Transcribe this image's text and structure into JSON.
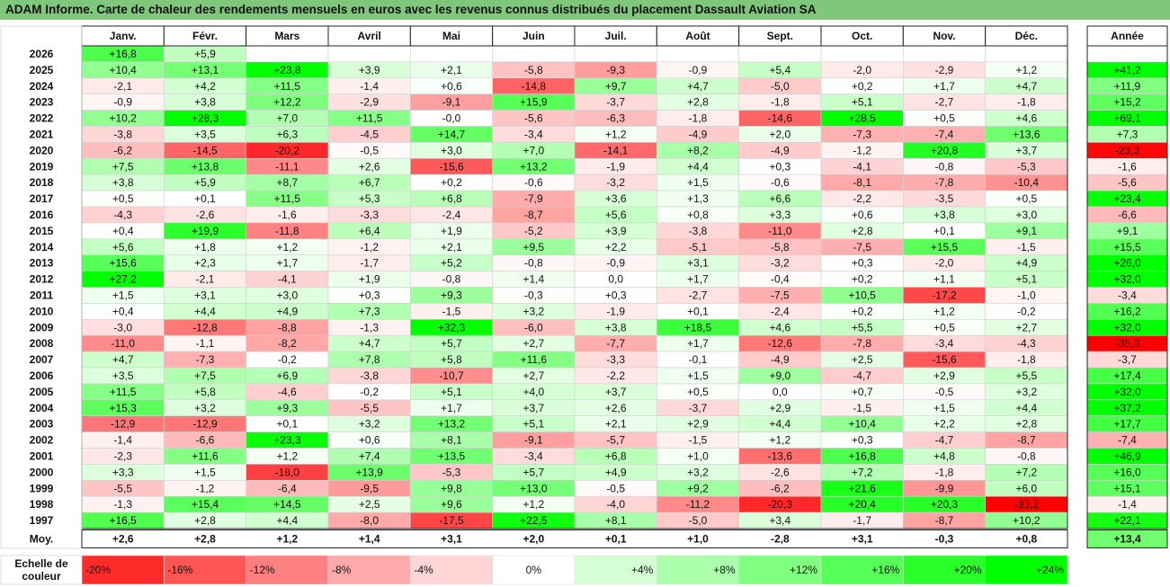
{
  "title": "ADAM Informe. Carte de chaleur des rendements mensuels en euros avec les revenus connus distribués du placement Dassault Aviation SA",
  "chart_data": {
    "type": "heatmap",
    "columns": [
      "Janv.",
      "Févr.",
      "Mars",
      "Avril",
      "Mai",
      "Juin",
      "Juil.",
      "Août",
      "Sept.",
      "Oct.",
      "Nov.",
      "Déc."
    ],
    "year_column_label": "Année",
    "rows": [
      {
        "label": "2026",
        "values": [
          16.8,
          5.9,
          null,
          null,
          null,
          null,
          null,
          null,
          null,
          null,
          null,
          null
        ],
        "year": null
      },
      {
        "label": "2025",
        "values": [
          10.4,
          13.1,
          23.8,
          3.9,
          2.1,
          -5.8,
          -9.3,
          -0.9,
          5.4,
          -2.0,
          -2.9,
          1.2
        ],
        "year": 41.2
      },
      {
        "label": "2024",
        "values": [
          -2.1,
          4.2,
          11.5,
          -1.4,
          0.6,
          -14.8,
          9.7,
          4.7,
          -5.0,
          0.2,
          1.7,
          4.7
        ],
        "year": 11.9
      },
      {
        "label": "2023",
        "values": [
          -0.9,
          3.8,
          12.2,
          -2.9,
          -9.1,
          15.9,
          -3.7,
          2.8,
          -1.8,
          5.1,
          -2.7,
          -1.8
        ],
        "year": 15.2
      },
      {
        "label": "2022",
        "values": [
          10.2,
          28.3,
          7.0,
          11.5,
          -0.0,
          -5.6,
          -6.3,
          -1.8,
          -14.6,
          28.5,
          0.5,
          4.6
        ],
        "year": 69.1
      },
      {
        "label": "2021",
        "values": [
          -3.8,
          3.5,
          6.3,
          -4.5,
          14.7,
          -3.4,
          1.2,
          -4.9,
          2.0,
          -7.3,
          -7.4,
          13.6
        ],
        "year": 7.3
      },
      {
        "label": "2020",
        "values": [
          -6.2,
          -14.5,
          -20.2,
          -0.5,
          3.0,
          7.0,
          -14.1,
          8.2,
          -4.9,
          -1.2,
          20.8,
          3.7
        ],
        "year": -23.3
      },
      {
        "label": "2019",
        "values": [
          7.5,
          13.8,
          -11.1,
          2.6,
          -15.6,
          13.2,
          -1.9,
          4.4,
          0.3,
          -4.1,
          -0.8,
          -5.3
        ],
        "year": -1.6
      },
      {
        "label": "2018",
        "values": [
          3.8,
          5.9,
          8.7,
          6.7,
          0.2,
          -0.6,
          -3.2,
          1.5,
          -0.6,
          -8.1,
          -7.8,
          -10.4
        ],
        "year": -5.6
      },
      {
        "label": "2017",
        "values": [
          0.5,
          0.1,
          11.5,
          5.3,
          6.8,
          -7.9,
          3.6,
          1.3,
          6.6,
          -2.2,
          -3.5,
          0.5
        ],
        "year": 23.4
      },
      {
        "label": "2016",
        "values": [
          -4.3,
          -2.6,
          -1.6,
          -3.3,
          -2.4,
          -8.7,
          5.6,
          0.8,
          3.3,
          0.6,
          3.8,
          3.0
        ],
        "year": -6.6
      },
      {
        "label": "2015",
        "values": [
          0.4,
          19.9,
          -11.8,
          6.4,
          1.9,
          -5.2,
          3.9,
          -3.8,
          -11.0,
          2.8,
          0.1,
          9.1
        ],
        "year": 9.1
      },
      {
        "label": "2014",
        "values": [
          5.6,
          1.8,
          1.2,
          -1.2,
          2.1,
          9.5,
          2.2,
          -5.1,
          -5.8,
          -7.5,
          15.5,
          -1.5
        ],
        "year": 15.5
      },
      {
        "label": "2013",
        "values": [
          15.6,
          2.3,
          1.7,
          -1.7,
          5.2,
          -0.8,
          -0.9,
          3.1,
          -3.2,
          0.3,
          -2.0,
          4.9
        ],
        "year": 26.0
      },
      {
        "label": "2012",
        "values": [
          27.2,
          -2.1,
          -4.1,
          1.9,
          -0.8,
          1.4,
          0.0,
          1.7,
          -0.4,
          0.2,
          1.1,
          5.1
        ],
        "year": 32.0
      },
      {
        "label": "2011",
        "values": [
          1.5,
          3.1,
          3.0,
          0.3,
          9.3,
          -0.3,
          0.3,
          -2.7,
          -7.5,
          10.5,
          -17.2,
          -1.0
        ],
        "year": -3.4
      },
      {
        "label": "2010",
        "values": [
          0.4,
          4.4,
          4.9,
          7.3,
          -1.5,
          3.2,
          -1.9,
          0.1,
          -2.4,
          0.2,
          1.2,
          -0.2
        ],
        "year": 16.2
      },
      {
        "label": "2009",
        "values": [
          -3.0,
          -12.8,
          -8.8,
          -1.3,
          32.3,
          -6.0,
          3.8,
          18.5,
          4.6,
          5.5,
          0.5,
          2.7
        ],
        "year": 32.0
      },
      {
        "label": "2008",
        "values": [
          -11.0,
          -1.1,
          -8.2,
          4.7,
          5.7,
          2.7,
          -7.7,
          1.7,
          -12.6,
          -7.8,
          -3.4,
          -4.3
        ],
        "year": -35.3
      },
      {
        "label": "2007",
        "values": [
          4.7,
          -7.3,
          -0.2,
          7.8,
          5.8,
          11.6,
          -3.3,
          -0.1,
          -4.9,
          2.5,
          -15.6,
          -1.8
        ],
        "year": -3.7
      },
      {
        "label": "2006",
        "values": [
          3.5,
          7.5,
          6.9,
          -3.8,
          -10.7,
          2.7,
          -2.2,
          1.5,
          9.0,
          -4.7,
          2.9,
          5.5
        ],
        "year": 17.4
      },
      {
        "label": "2005",
        "values": [
          11.5,
          5.8,
          -4.6,
          -0.2,
          5.1,
          4.0,
          3.7,
          0.5,
          0.0,
          0.7,
          -0.5,
          3.2
        ],
        "year": 32.0
      },
      {
        "label": "2004",
        "values": [
          15.3,
          3.2,
          9.3,
          -5.5,
          1.7,
          3.7,
          2.6,
          -3.7,
          2.9,
          -1.5,
          1.5,
          4.4
        ],
        "year": 37.2
      },
      {
        "label": "2003",
        "values": [
          -12.9,
          -12.9,
          0.1,
          3.2,
          13.2,
          5.1,
          2.1,
          2.9,
          4.4,
          10.4,
          2.2,
          2.8
        ],
        "year": 17.7
      },
      {
        "label": "2002",
        "values": [
          -1.4,
          -6.6,
          23.3,
          0.6,
          8.1,
          -9.1,
          -5.7,
          -1.5,
          1.2,
          0.3,
          -4.7,
          -8.7
        ],
        "year": -7.4
      },
      {
        "label": "2001",
        "values": [
          -2.3,
          11.6,
          1.2,
          7.4,
          13.5,
          -3.4,
          6.8,
          1.0,
          -13.6,
          16.8,
          4.8,
          -0.8
        ],
        "year": 46.9
      },
      {
        "label": "2000",
        "values": [
          3.3,
          1.5,
          -18.0,
          13.9,
          -5.3,
          5.7,
          4.9,
          3.2,
          -2.6,
          7.2,
          -1.8,
          7.2
        ],
        "year": 16.0
      },
      {
        "label": "1999",
        "values": [
          -5.5,
          -1.2,
          -6.4,
          -9.5,
          9.8,
          13.0,
          -0.5,
          9.2,
          -6.2,
          21.6,
          -9.9,
          6.0
        ],
        "year": 15.1
      },
      {
        "label": "1998",
        "values": [
          -1.3,
          15.4,
          14.5,
          2.5,
          9.6,
          1.2,
          -4.0,
          -11.2,
          -20.3,
          20.4,
          20.3,
          -33.2
        ],
        "year": -1.4
      },
      {
        "label": "1997",
        "values": [
          16.5,
          2.8,
          4.4,
          -8.0,
          -17.5,
          22.5,
          8.1,
          -5.0,
          3.4,
          -1.7,
          -8.7,
          10.2
        ],
        "year": 22.1
      }
    ],
    "average": {
      "label": "Moy.",
      "values": [
        2.6,
        2.8,
        1.2,
        1.4,
        3.1,
        2.0,
        0.1,
        1.0,
        -2.8,
        3.1,
        -0.3,
        0.8
      ],
      "year": 13.4
    },
    "color_scale": {
      "label_line1": "Echelle de",
      "label_line2": "couleur",
      "steps": [
        {
          "label": "-20%",
          "value": -20
        },
        {
          "label": "-16%",
          "value": -16
        },
        {
          "label": "-12%",
          "value": -12
        },
        {
          "label": "-8%",
          "value": -8
        },
        {
          "label": "-4%",
          "value": -4
        },
        {
          "label": "0%",
          "value": 0
        },
        {
          "label": "+4%",
          "value": 4
        },
        {
          "label": "+8%",
          "value": 8
        },
        {
          "label": "+12%",
          "value": 12
        },
        {
          "label": "+16%",
          "value": 16
        },
        {
          "label": "+20%",
          "value": 20
        },
        {
          "label": "+24%",
          "value": 24
        }
      ]
    },
    "colors": {
      "negative_max": "#ff0000",
      "neutral": "#ffffff",
      "positive_max": "#00ff00"
    }
  }
}
